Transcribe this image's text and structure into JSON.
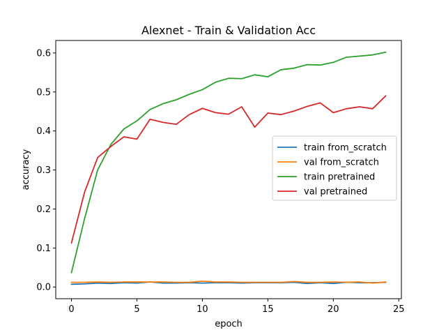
{
  "chart_data": {
    "type": "line",
    "title": "Alexnet - Train & Validation Acc",
    "xlabel": "epoch",
    "ylabel": "accuracy",
    "xlim": [
      -1.2,
      25.2
    ],
    "ylim": [
      -0.03,
      0.632
    ],
    "xticks": [
      0,
      5,
      10,
      15,
      20,
      25
    ],
    "yticks": [
      0.0,
      0.1,
      0.2,
      0.3,
      0.4,
      0.5,
      0.6
    ],
    "ytick_labels": [
      "0.0",
      "0.1",
      "0.2",
      "0.3",
      "0.4",
      "0.5",
      "0.6"
    ],
    "legend_position": "center-right",
    "x": [
      0,
      1,
      2,
      3,
      4,
      5,
      6,
      7,
      8,
      9,
      10,
      11,
      12,
      13,
      14,
      15,
      16,
      17,
      18,
      19,
      20,
      21,
      22,
      23,
      24
    ],
    "series": [
      {
        "name": "train from_scratch",
        "color": "#1f77b4",
        "values": [
          0.007,
          0.008,
          0.01,
          0.009,
          0.011,
          0.01,
          0.013,
          0.01,
          0.01,
          0.011,
          0.01,
          0.011,
          0.011,
          0.01,
          0.011,
          0.011,
          0.011,
          0.012,
          0.009,
          0.011,
          0.009,
          0.012,
          0.011,
          0.011,
          0.012
        ]
      },
      {
        "name": "val from_scratch",
        "color": "#ff7f0e",
        "values": [
          0.012,
          0.012,
          0.013,
          0.012,
          0.013,
          0.013,
          0.013,
          0.013,
          0.012,
          0.012,
          0.015,
          0.013,
          0.013,
          0.012,
          0.012,
          0.012,
          0.012,
          0.014,
          0.012,
          0.012,
          0.013,
          0.012,
          0.013,
          0.01,
          0.013
        ]
      },
      {
        "name": "train pretrained",
        "color": "#2ca02c",
        "values": [
          0.037,
          0.175,
          0.3,
          0.365,
          0.405,
          0.426,
          0.455,
          0.47,
          0.48,
          0.494,
          0.506,
          0.525,
          0.535,
          0.534,
          0.544,
          0.539,
          0.557,
          0.561,
          0.57,
          0.569,
          0.576,
          0.589,
          0.592,
          0.595,
          0.602
        ]
      },
      {
        "name": "val pretrained",
        "color": "#d62728",
        "values": [
          0.113,
          0.243,
          0.332,
          0.36,
          0.385,
          0.379,
          0.43,
          0.422,
          0.417,
          0.442,
          0.458,
          0.447,
          0.443,
          0.462,
          0.41,
          0.446,
          0.442,
          0.451,
          0.463,
          0.472,
          0.447,
          0.457,
          0.462,
          0.457,
          0.49
        ]
      }
    ]
  }
}
